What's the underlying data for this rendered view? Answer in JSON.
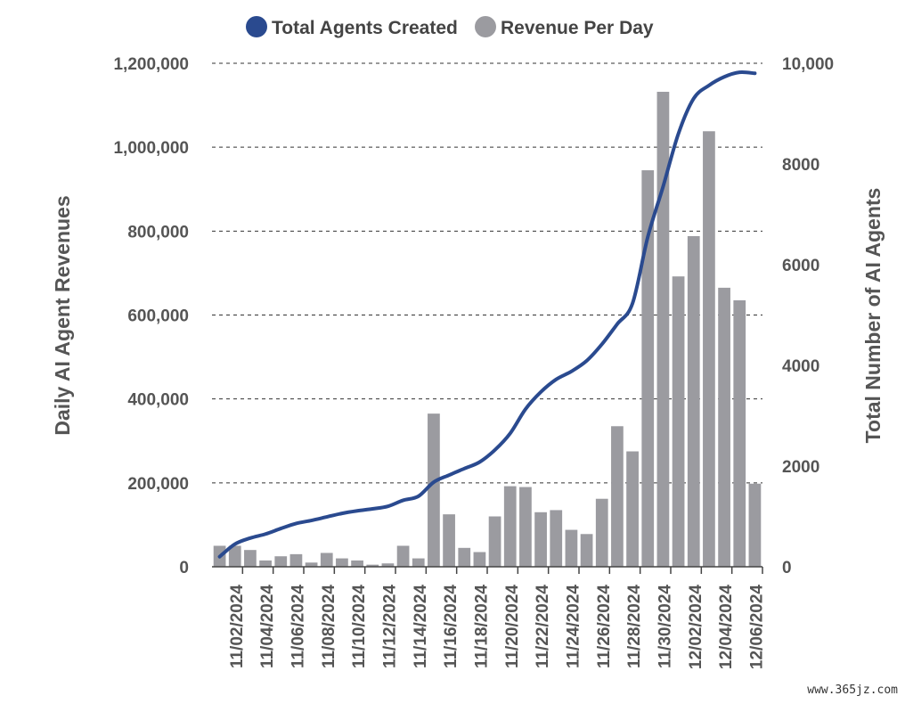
{
  "chart_data": {
    "type": "bar+line",
    "legend": {
      "placement": "top-center",
      "items": [
        {
          "label": "Total Agents Created",
          "color": "#2a4a8f",
          "marker": "circle"
        },
        {
          "label": "Revenue Per Day",
          "color": "#9b9ba0",
          "marker": "circle"
        }
      ]
    },
    "y_left": {
      "label": "Daily AI Agent Revenues",
      "min": 0,
      "max": 1200000,
      "ticks": [
        0,
        200000,
        400000,
        600000,
        800000,
        1000000,
        1200000
      ],
      "tick_labels": [
        "0",
        "200,000",
        "400,000",
        "600,000",
        "800,000",
        "1,000,000",
        "1,200,000"
      ]
    },
    "y_right": {
      "label": "Total Number of AI Agents",
      "min": 0,
      "max": 10000,
      "ticks": [
        0,
        2000,
        4000,
        6000,
        8000,
        10000
      ],
      "tick_labels": [
        "0",
        "2000",
        "4000",
        "6000",
        "8000",
        "10,000"
      ]
    },
    "grid": "horizontal-dashed",
    "x_tick_labels": [
      "11/02/2024",
      "11/04/2024",
      "11/06/2024",
      "11/08/2024",
      "11/10/2024",
      "11/12/2024",
      "11/14/2024",
      "11/16/2024",
      "11/18/2024",
      "11/20/2024",
      "11/22/2024",
      "11/24/2024",
      "11/26/2024",
      "11/28/2024",
      "11/30/2024",
      "12/02/2024",
      "12/04/2024",
      "12/06/2024"
    ],
    "x_tick_indices": [
      1,
      3,
      5,
      7,
      9,
      11,
      13,
      15,
      17,
      19,
      21,
      23,
      25,
      27,
      29,
      31,
      33,
      35
    ],
    "dates": [
      "11/01/2024",
      "11/02/2024",
      "11/03/2024",
      "11/04/2024",
      "11/05/2024",
      "11/06/2024",
      "11/07/2024",
      "11/08/2024",
      "11/09/2024",
      "11/10/2024",
      "11/11/2024",
      "11/12/2024",
      "11/13/2024",
      "11/14/2024",
      "11/15/2024",
      "11/16/2024",
      "11/17/2024",
      "11/18/2024",
      "11/19/2024",
      "11/20/2024",
      "11/21/2024",
      "11/22/2024",
      "11/23/2024",
      "11/24/2024",
      "11/25/2024",
      "11/26/2024",
      "11/27/2024",
      "11/28/2024",
      "11/29/2024",
      "11/30/2024",
      "12/01/2024",
      "12/02/2024",
      "12/03/2024",
      "12/04/2024",
      "12/05/2024",
      "12/06/2024"
    ],
    "series": [
      {
        "name": "Revenue Per Day",
        "type": "bar",
        "axis": "left",
        "color": "#9b9ba0",
        "values": [
          50000,
          50000,
          40000,
          15000,
          25000,
          30000,
          10000,
          33000,
          20000,
          15000,
          5000,
          8000,
          50000,
          20000,
          365000,
          125000,
          45000,
          35000,
          120000,
          192000,
          190000,
          130000,
          135000,
          88000,
          78000,
          162000,
          335000,
          275000,
          945000,
          1132000,
          692000,
          788000,
          1038000,
          665000,
          635000,
          198000
        ]
      },
      {
        "name": "Total Agents Created",
        "type": "line",
        "axis": "right",
        "color": "#2a4a8f",
        "values": [
          200,
          450,
          570,
          650,
          760,
          860,
          920,
          990,
          1060,
          1110,
          1150,
          1200,
          1320,
          1400,
          1680,
          1820,
          1950,
          2080,
          2320,
          2650,
          3130,
          3470,
          3720,
          3880,
          4090,
          4420,
          4820,
          5230,
          6550,
          7550,
          8600,
          9300,
          9560,
          9730,
          9820,
          9800
        ]
      }
    ]
  },
  "watermark": "www.365jz.com"
}
